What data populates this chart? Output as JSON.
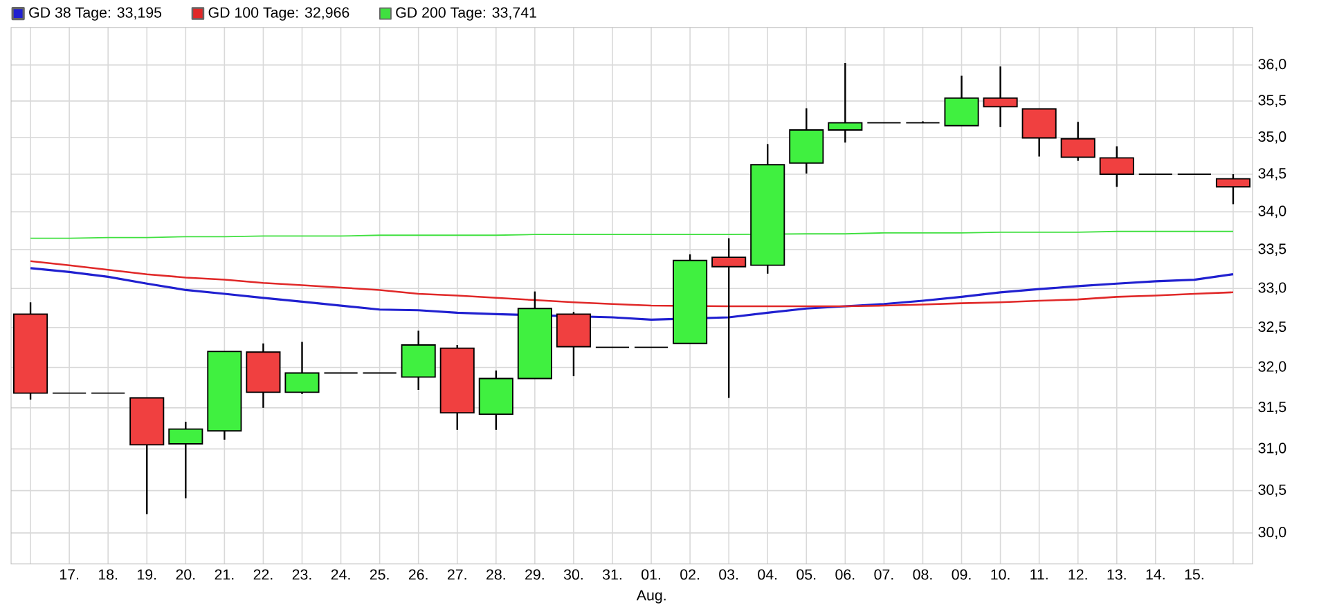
{
  "chart_data": {
    "type": "candlestick",
    "categories": [
      null,
      "17.",
      "18.",
      "19.",
      "20.",
      "21.",
      "22.",
      "23.",
      "24.",
      "25.",
      "26.",
      "27.",
      "28.",
      "29.",
      "30.",
      "31.",
      "01.",
      "02.",
      "03.",
      "04.",
      "05.",
      "06.",
      "07.",
      "08.",
      "09.",
      "10.",
      "11.",
      "12.",
      "13.",
      "14.",
      "15.",
      null
    ],
    "ohlc": [
      [
        32.67,
        32.82,
        31.6,
        31.68
      ],
      [
        31.68,
        31.68,
        31.68,
        31.68
      ],
      [
        31.68,
        31.68,
        31.68,
        31.68
      ],
      [
        31.62,
        31.62,
        30.22,
        31.05
      ],
      [
        31.06,
        31.33,
        30.41,
        31.24
      ],
      [
        31.22,
        32.2,
        31.11,
        32.2
      ],
      [
        32.19,
        32.3,
        31.5,
        31.69
      ],
      [
        31.69,
        32.32,
        31.67,
        31.93
      ],
      [
        31.93,
        31.93,
        31.93,
        31.93
      ],
      [
        31.93,
        31.93,
        31.93,
        31.93
      ],
      [
        31.88,
        32.46,
        31.72,
        32.28
      ],
      [
        32.24,
        32.28,
        31.23,
        31.44
      ],
      [
        31.42,
        31.96,
        31.23,
        31.86
      ],
      [
        31.86,
        32.96,
        31.86,
        32.74
      ],
      [
        32.67,
        32.7,
        31.89,
        32.26
      ],
      [
        32.25,
        32.25,
        32.25,
        32.25
      ],
      [
        32.25,
        32.25,
        32.25,
        32.25
      ],
      [
        32.3,
        33.44,
        32.3,
        33.36
      ],
      [
        33.4,
        33.65,
        31.62,
        33.28
      ],
      [
        33.3,
        34.91,
        33.19,
        34.63
      ],
      [
        34.65,
        35.4,
        34.51,
        35.1
      ],
      [
        35.1,
        36.03,
        34.93,
        35.2
      ],
      [
        35.2,
        35.2,
        35.2,
        35.2
      ],
      [
        35.2,
        35.22,
        35.2,
        35.2
      ],
      [
        35.16,
        35.85,
        35.16,
        35.54
      ],
      [
        35.54,
        35.98,
        35.14,
        35.42
      ],
      [
        35.39,
        35.39,
        34.74,
        34.99
      ],
      [
        34.98,
        35.21,
        34.68,
        34.73
      ],
      [
        34.72,
        34.88,
        34.33,
        34.5
      ],
      [
        34.5,
        34.5,
        34.5,
        34.5
      ],
      [
        34.5,
        34.5,
        34.5,
        34.5
      ],
      [
        34.44,
        34.5,
        34.1,
        34.33
      ]
    ],
    "colors": [
      "#f04040",
      "#000000",
      "#000000",
      "#f04040",
      "#40f040",
      "#40f040",
      "#f04040",
      "#40f040",
      "#000000",
      "#000000",
      "#40f040",
      "#f04040",
      "#40f040",
      "#40f040",
      "#f04040",
      "#000000",
      "#000000",
      "#40f040",
      "#f04040",
      "#40f040",
      "#40f040",
      "#40f040",
      "#000000",
      "#000000",
      "#40f040",
      "#f04040",
      "#f04040",
      "#f04040",
      "#f04040",
      "#000000",
      "#000000",
      "#f04040"
    ],
    "series": [
      {
        "type": "line",
        "name": "GD 38 Tage: 33,195",
        "color": "#2020d0",
        "values": [
          33.26,
          33.21,
          33.15,
          33.06,
          32.98,
          32.93,
          32.88,
          32.83,
          32.78,
          32.73,
          32.72,
          32.69,
          32.67,
          null,
          null,
          32.63,
          32.6,
          null,
          32.63,
          32.69,
          32.74,
          32.77,
          32.8,
          32.84,
          32.89,
          32.95,
          32.99,
          33.03,
          33.06,
          33.09,
          33.11,
          33.18
        ]
      },
      {
        "type": "line",
        "name": "GD 100 Tage: 32,966",
        "color": "#e02828",
        "values": [
          33.35,
          33.3,
          33.24,
          33.18,
          33.14,
          33.11,
          33.07,
          33.04,
          33.01,
          32.98,
          32.93,
          32.91,
          32.88,
          32.85,
          32.82,
          32.8,
          32.78,
          null,
          32.77,
          32.77,
          32.77,
          32.77,
          32.78,
          32.79,
          32.81,
          32.82,
          32.84,
          32.86,
          32.89,
          32.91,
          32.93,
          32.95
        ]
      },
      {
        "type": "line",
        "name": "GD 200 Tage: 33,741",
        "color": "#40e040",
        "values": [
          33.65,
          33.65,
          33.66,
          33.66,
          33.67,
          33.67,
          33.68,
          33.68,
          33.68,
          33.69,
          33.69,
          33.69,
          33.69,
          33.7,
          33.7,
          33.7,
          33.7,
          33.7,
          33.7,
          null,
          33.71,
          33.71,
          33.72,
          33.72,
          33.72,
          33.73,
          33.73,
          33.73,
          33.74,
          33.74,
          33.74,
          33.74
        ]
      }
    ],
    "ylim": [
      29.64,
      36.53
    ],
    "yticks": [
      {
        "value": 30,
        "label": "30,0"
      },
      {
        "value": 30.5,
        "label": "30,5"
      },
      {
        "value": 31,
        "label": "31,0"
      },
      {
        "value": 31.5,
        "label": "31,5"
      },
      {
        "value": 32,
        "label": "32,0"
      },
      {
        "value": 32.5,
        "label": "32,5"
      },
      {
        "value": 33,
        "label": "33,0"
      },
      {
        "value": 33.5,
        "label": "33,5"
      },
      {
        "value": 34,
        "label": "34,0"
      },
      {
        "value": 34.5,
        "label": "34,5"
      },
      {
        "value": 35,
        "label": "35,0"
      },
      {
        "value": 35.5,
        "label": "35,5"
      },
      {
        "value": 36,
        "label": "36,0"
      }
    ],
    "log": "y",
    "grid": true,
    "legend": "top left",
    "annotations": [
      "Aug."
    ]
  }
}
